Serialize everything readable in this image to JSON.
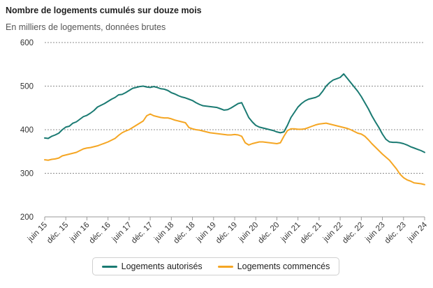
{
  "chart_data": {
    "type": "line",
    "title": "Nombre de logements cumulés sur douze mois",
    "subtitle": "En milliers de logements, données brutes",
    "ylim": [
      200,
      600
    ],
    "yticks": [
      200,
      300,
      400,
      500,
      600
    ],
    "grid": true,
    "legend_position": "bottom",
    "xticks": [
      {
        "label": "juin 15",
        "t": 0
      },
      {
        "label": "déc. 15",
        "t": 6
      },
      {
        "label": "juin 16",
        "t": 12
      },
      {
        "label": "déc. 16",
        "t": 18
      },
      {
        "label": "juin 17",
        "t": 24
      },
      {
        "label": "déc. 17",
        "t": 30
      },
      {
        "label": "juin 18",
        "t": 36
      },
      {
        "label": "déc. 18",
        "t": 42
      },
      {
        "label": "juin 19",
        "t": 48
      },
      {
        "label": "déc. 19",
        "t": 54
      },
      {
        "label": "juin 20",
        "t": 60
      },
      {
        "label": "déc. 20",
        "t": 66
      },
      {
        "label": "juin 21",
        "t": 72
      },
      {
        "label": "déc. 21",
        "t": 78
      },
      {
        "label": "juin 22",
        "t": 84
      },
      {
        "label": "déc. 22",
        "t": 90
      },
      {
        "label": "juin 23",
        "t": 96
      },
      {
        "label": "déc. 23",
        "t": 102
      },
      {
        "label": "juin 24",
        "t": 108
      }
    ],
    "series": [
      {
        "name": "Logements autorisés",
        "color": "#1a7a72",
        "values": [
          381,
          380,
          385,
          388,
          392,
          400,
          406,
          408,
          415,
          418,
          424,
          430,
          433,
          438,
          444,
          452,
          456,
          460,
          465,
          470,
          474,
          480,
          481,
          485,
          490,
          495,
          497,
          499,
          500,
          498,
          497,
          499,
          497,
          494,
          493,
          490,
          485,
          482,
          478,
          475,
          473,
          470,
          467,
          462,
          458,
          455,
          454,
          453,
          452,
          451,
          448,
          445,
          446,
          450,
          455,
          460,
          462,
          445,
          428,
          418,
          410,
          406,
          404,
          402,
          400,
          398,
          395,
          393,
          395,
          410,
          428,
          440,
          452,
          460,
          466,
          470,
          472,
          474,
          478,
          488,
          500,
          508,
          514,
          517,
          520,
          528,
          518,
          508,
          498,
          488,
          476,
          462,
          448,
          432,
          418,
          405,
          390,
          378,
          372,
          371,
          371,
          370,
          368,
          365,
          361,
          358,
          355,
          352,
          348
        ]
      },
      {
        "name": "Logements commencés",
        "color": "#f5a623",
        "values": [
          331,
          330,
          332,
          333,
          335,
          340,
          342,
          344,
          346,
          348,
          352,
          356,
          358,
          359,
          361,
          363,
          366,
          369,
          372,
          376,
          380,
          387,
          393,
          397,
          400,
          405,
          410,
          415,
          420,
          432,
          436,
          432,
          430,
          428,
          427,
          427,
          425,
          422,
          420,
          418,
          416,
          405,
          402,
          400,
          399,
          397,
          395,
          393,
          392,
          391,
          390,
          389,
          388,
          388,
          389,
          388,
          385,
          370,
          365,
          368,
          370,
          372,
          372,
          371,
          370,
          369,
          368,
          370,
          385,
          398,
          402,
          402,
          401,
          401,
          402,
          405,
          408,
          411,
          413,
          414,
          415,
          413,
          411,
          409,
          407,
          405,
          403,
          400,
          396,
          392,
          390,
          385,
          377,
          368,
          360,
          352,
          344,
          337,
          330,
          320,
          310,
          298,
          290,
          285,
          282,
          278,
          277,
          276,
          274
        ]
      }
    ]
  }
}
